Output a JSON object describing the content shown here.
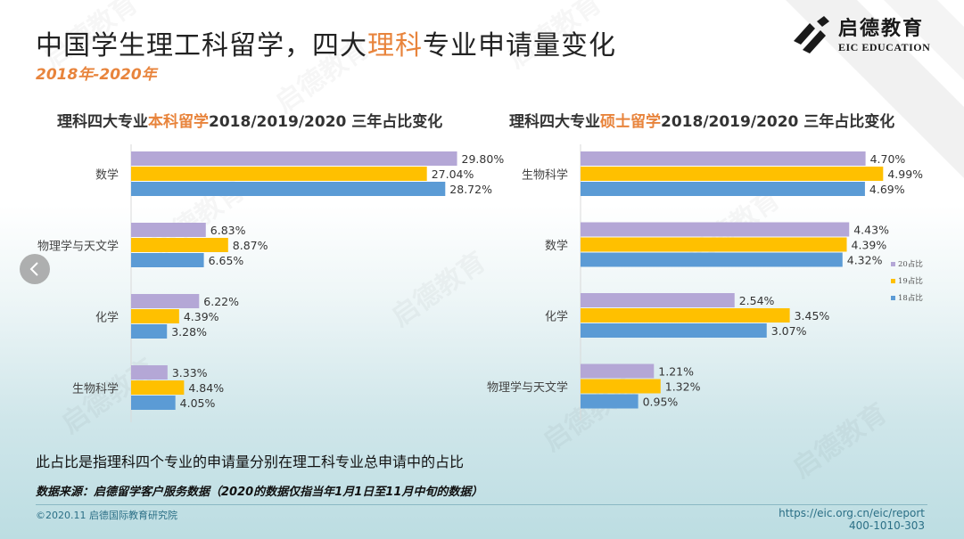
{
  "header": {
    "title_part1": "中国学生理工科留学，四大",
    "title_highlight": "理科",
    "title_part2": "专业申请量变化",
    "subtitle": "2018年-2020年"
  },
  "logo": {
    "cn": "启德教育",
    "en": "EIC EDUCATION",
    "icon": "eic-logo-icon"
  },
  "colors": {
    "accent": "#e8843c",
    "series_20": "#b4a7d6",
    "series_19": "#ffc000",
    "series_18": "#5b9bd5"
  },
  "chart_data": [
    {
      "type": "bar",
      "orientation": "horizontal",
      "title_prefix": "理科四大专业",
      "title_highlight": "本科留学",
      "title_suffix": "2018/2019/2020 三年占比变化",
      "categories": [
        "数学",
        "物理学与天文学",
        "化学",
        "生物科学"
      ],
      "series": [
        {
          "name": "20占比",
          "values": [
            29.8,
            6.83,
            6.22,
            3.33
          ]
        },
        {
          "name": "19占比",
          "values": [
            27.04,
            8.87,
            4.39,
            4.84
          ]
        },
        {
          "name": "18占比",
          "values": [
            28.72,
            6.65,
            3.28,
            4.05
          ]
        }
      ],
      "value_labels": {
        "20占比": [
          "29.80%",
          "6.83%",
          "6.22%",
          "3.33%"
        ],
        "19占比": [
          "27.04%",
          "8.87%",
          "4.39%",
          "4.84%"
        ],
        "18占比": [
          "28.72%",
          "6.65%",
          "3.28%",
          "4.05%"
        ]
      },
      "xlim": [
        0,
        30
      ],
      "legend": "none",
      "grid": false
    },
    {
      "type": "bar",
      "orientation": "horizontal",
      "title_prefix": "理科四大专业",
      "title_highlight": "硕士留学",
      "title_suffix": "2018/2019/2020 三年占比变化",
      "categories": [
        "生物科学",
        "数学",
        "化学",
        "物理学与天文学"
      ],
      "series": [
        {
          "name": "20占比",
          "values": [
            4.7,
            4.43,
            2.54,
            1.21
          ]
        },
        {
          "name": "19占比",
          "values": [
            4.99,
            4.39,
            3.45,
            1.32
          ]
        },
        {
          "name": "18占比",
          "values": [
            4.69,
            4.32,
            3.07,
            0.95
          ]
        }
      ],
      "value_labels": {
        "20占比": [
          "4.70%",
          "4.43%",
          "2.54%",
          "1.21%"
        ],
        "19占比": [
          "4.99%",
          "4.39%",
          "3.45%",
          "1.32%"
        ],
        "18占比": [
          "4.69%",
          "4.32%",
          "3.07%",
          "0.95%"
        ]
      },
      "xlim": [
        0,
        5
      ],
      "legend": "right",
      "grid": false
    }
  ],
  "footer": {
    "note": "此占比是指理科四个专业的申请量分别在理工科专业总申请中的占比",
    "source": "数据来源：启德留学客户服务数据（2020的数据仅指当年1月1日至11月中旬的数据）",
    "copyright": "©2020.11 启德国际教育研究院",
    "url": "https://eic.org.cn/eic/report",
    "phone": "400-1010-303"
  },
  "nav": {
    "back_icon": "chevron-left-icon"
  }
}
